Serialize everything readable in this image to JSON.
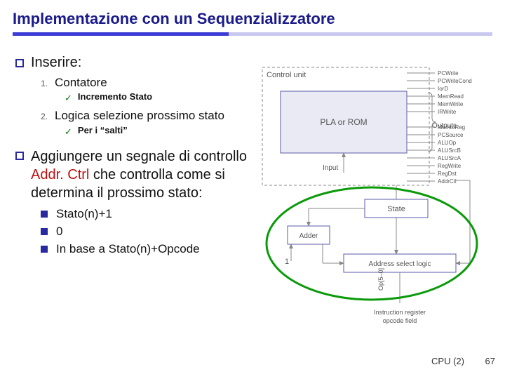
{
  "title": "Implementazione con un Sequenzializzatore",
  "bullets": {
    "b1": {
      "label": "Inserire:"
    },
    "b1_1": {
      "num": "1.",
      "text": "Contatore"
    },
    "b1_1_c": {
      "text": "Incremento Stato"
    },
    "b1_2": {
      "num": "2.",
      "text": "Logica selezione prossimo stato"
    },
    "b1_2_c": {
      "text": "Per i “salti”"
    },
    "b2_pre": "Aggiungere un segnale di controllo ",
    "b2_kw": "Addr. Ctrl",
    "b2_post": " che controlla come si determina il prossimo stato:",
    "m1": "Stato(n)+1",
    "m2": "0",
    "m3": "In base a Stato(n)+Opcode"
  },
  "diagram": {
    "control_unit": "Control unit",
    "pla": "PLA or ROM",
    "outputs": "Outputs",
    "input": "Input",
    "state": "State",
    "adder": "Adder",
    "addr_logic": "Address select logic",
    "one": "1",
    "op_label": "Op[5–0]",
    "ir_label": "Instruction register opcode field",
    "signals": [
      "PCWrite",
      "PCWriteCond",
      "IorD",
      "MemRead",
      "MemWrite",
      "IRWrite",
      "",
      "MemtoReg",
      "PCSource",
      "ALUOp",
      "ALUSrcB",
      "ALUSrcA",
      "RegWrite",
      "RegDst",
      "AddrCtl"
    ],
    "colors": {
      "box_stroke": "#5a5aa8",
      "thin_stroke": "#888",
      "text": "#555",
      "ellipse": "#0a9a0a"
    }
  },
  "footer": {
    "label": "CPU (2)",
    "page": "67"
  }
}
